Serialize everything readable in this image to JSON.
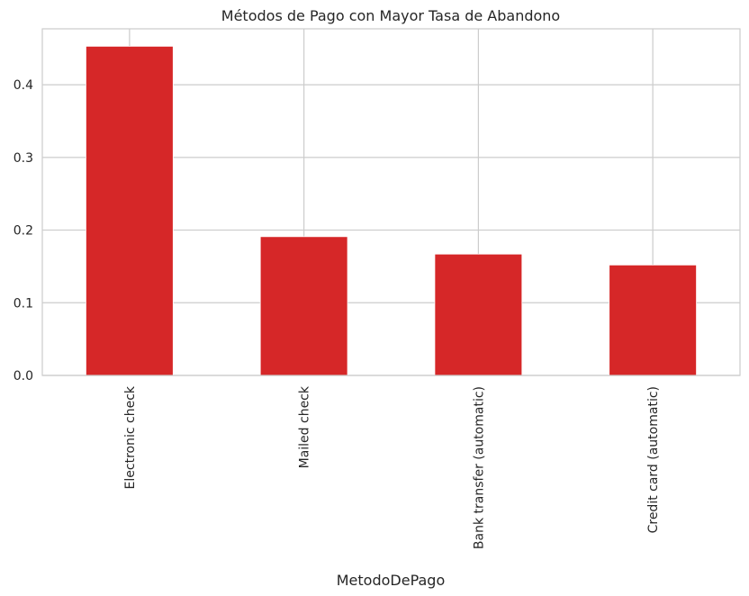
{
  "chart_data": {
    "type": "bar",
    "title": "Métodos de Pago con Mayor Tasa de Abandono",
    "xlabel": "MetodoDePago",
    "ylabel": "",
    "categories": [
      "Electronic check",
      "Mailed check",
      "Bank transfer (automatic)",
      "Credit card (automatic)"
    ],
    "values": [
      0.453,
      0.191,
      0.167,
      0.152
    ],
    "ylim": [
      0,
      0.477
    ],
    "yticks": [
      0.0,
      0.1,
      0.2,
      0.3,
      0.4
    ],
    "ytick_labels": [
      "0.0",
      "0.1",
      "0.2",
      "0.3",
      "0.4"
    ],
    "grid": true,
    "bar_color": "#d62728",
    "grid_color": "#cccccc"
  }
}
